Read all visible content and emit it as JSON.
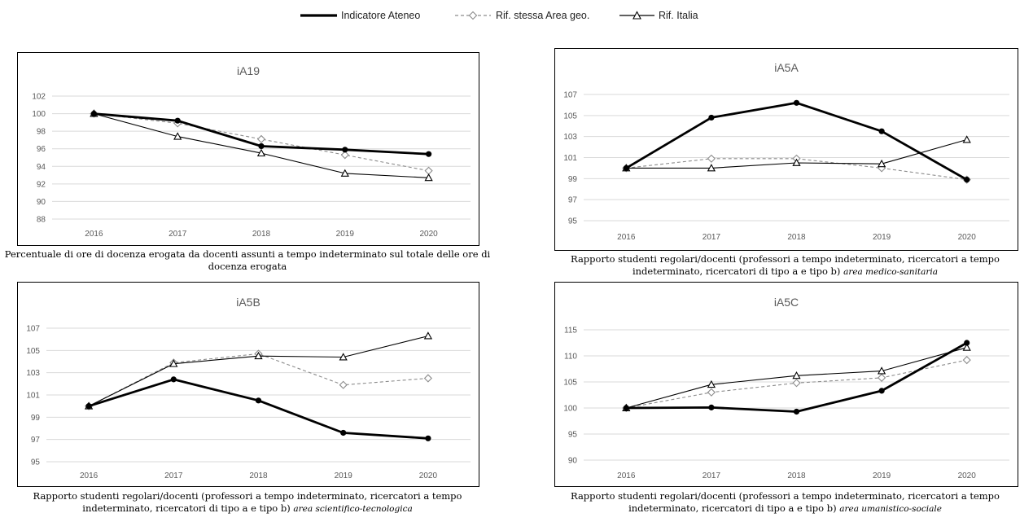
{
  "legend": [
    {
      "label": "Indicatore Ateneo",
      "style": "bold"
    },
    {
      "label": "Rif. stessa Area geo.",
      "style": "dashed"
    },
    {
      "label": "Rif. Italia",
      "style": "thin"
    }
  ],
  "colors": {
    "ateneo": "#000000",
    "area": "#8c8c8c",
    "italia": "#000000",
    "grid": "#d9d9d9",
    "axis_text": "#595959"
  },
  "chart_data": [
    {
      "type": "line",
      "title": "iA19",
      "categories": [
        "2016",
        "2017",
        "2018",
        "2019",
        "2020"
      ],
      "ylim": [
        88,
        102
      ],
      "yticks": [
        "88",
        "90",
        "92",
        "94",
        "96",
        "98",
        "100",
        "102"
      ],
      "series": [
        {
          "name": "Indicatore Ateneo",
          "values": [
            100,
            99.2,
            96.3,
            95.9,
            95.4
          ]
        },
        {
          "name": "Rif. stessa Area geo.",
          "values": [
            100,
            98.9,
            97.1,
            95.3,
            93.5
          ]
        },
        {
          "name": "Rif. Italia",
          "values": [
            100,
            97.4,
            95.5,
            93.2,
            92.7
          ]
        }
      ],
      "caption": {
        "text": "Percentuale di ore di docenza erogata da docenti assunti a tempo indeterminato sul totale delle ore di docenza erogata",
        "area": ""
      }
    },
    {
      "type": "line",
      "title": "iA5A",
      "categories": [
        "2016",
        "2017",
        "2018",
        "2019",
        "2020"
      ],
      "ylim": [
        95,
        107
      ],
      "yticks": [
        "95",
        "97",
        "99",
        "101",
        "103",
        "105",
        "107"
      ],
      "series": [
        {
          "name": "Indicatore Ateneo",
          "values": [
            100,
            104.8,
            106.2,
            103.5,
            98.9
          ]
        },
        {
          "name": "Rif. stessa Area geo.",
          "values": [
            100,
            100.9,
            100.9,
            100,
            98.9
          ]
        },
        {
          "name": "Rif. Italia",
          "values": [
            100,
            100,
            100.5,
            100.4,
            102.7
          ]
        }
      ],
      "caption": {
        "text": "Rapporto studenti regolari/docenti (professori a tempo indeterminato, ricercatori a tempo indeterminato, ricercatori di tipo a e tipo b)",
        "area": "area medico-sanitaria"
      }
    },
    {
      "type": "line",
      "title": "iA5B",
      "categories": [
        "2016",
        "2017",
        "2018",
        "2019",
        "2020"
      ],
      "ylim": [
        95,
        107
      ],
      "yticks": [
        "95",
        "97",
        "99",
        "101",
        "103",
        "105",
        "107"
      ],
      "series": [
        {
          "name": "Indicatore Ateneo",
          "values": [
            100,
            102.4,
            100.5,
            97.6,
            97.1
          ]
        },
        {
          "name": "Rif. stessa Area geo.",
          "values": [
            100,
            103.9,
            104.7,
            101.9,
            102.5
          ]
        },
        {
          "name": "Rif. Italia",
          "values": [
            100,
            103.8,
            104.5,
            104.4,
            106.3
          ]
        }
      ],
      "caption": {
        "text": "Rapporto studenti regolari/docenti (professori a tempo indeterminato, ricercatori a tempo indeterminato, ricercatori di tipo a e tipo b)",
        "area": "area scientifico-tecnologica"
      }
    },
    {
      "type": "line",
      "title": "iA5C",
      "categories": [
        "2016",
        "2017",
        "2018",
        "2019",
        "2020"
      ],
      "ylim": [
        90,
        115
      ],
      "yticks": [
        "90",
        "95",
        "100",
        "105",
        "110",
        "115"
      ],
      "series": [
        {
          "name": "Indicatore Ateneo",
          "values": [
            100,
            100.1,
            99.3,
            103.3,
            112.5
          ]
        },
        {
          "name": "Rif. stessa Area geo.",
          "values": [
            100,
            103,
            104.8,
            105.8,
            109.2
          ]
        },
        {
          "name": "Rif. Italia",
          "values": [
            100,
            104.5,
            106.2,
            107.1,
            111.6
          ]
        }
      ],
      "caption": {
        "text": "Rapporto studenti regolari/docenti (professori a tempo indeterminato, ricercatori a tempo indeterminato, ricercatori di tipo a e tipo b)",
        "area": "area umanistico-sociale"
      }
    }
  ]
}
